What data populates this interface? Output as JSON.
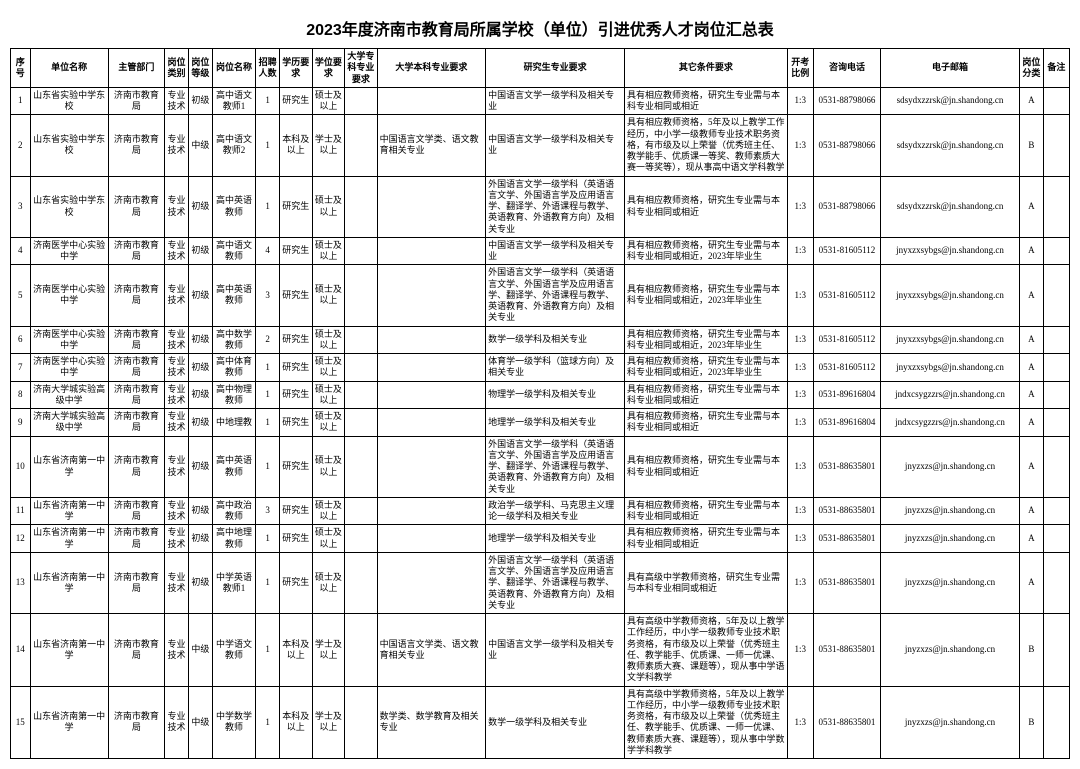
{
  "title": "2023年度济南市教育局所属学校（单位）引进优秀人才岗位汇总表",
  "headers": {
    "seq": "序号",
    "unit": "单位名称",
    "dept": "主管部门",
    "ptype": "岗位类别",
    "pgrade": "岗位等级",
    "pname": "岗位名称",
    "count": "招聘人数",
    "edu": "学历要求",
    "degree": "学位要求",
    "zkreq": "大学专科专业要求",
    "bkreq": "大学本科专业要求",
    "gradreq": "研究生专业要求",
    "other": "其它条件要求",
    "ratio": "开考比例",
    "phone": "咨询电话",
    "email": "电子邮箱",
    "class": "岗位分类",
    "rem": "备注"
  },
  "rows": [
    {
      "seq": "1",
      "unit": "山东省实验中学东校",
      "dept": "济南市教育局",
      "ptype": "专业技术",
      "pgrade": "初级",
      "pname": "高中语文教师1",
      "count": "1",
      "edu": "研究生",
      "degree": "硕士及以上",
      "zkreq": "",
      "bkreq": "",
      "gradreq": "中国语言文学一级学科及相关专业",
      "other": "具有相应教师资格，研究生专业需与本科专业相同或相近",
      "ratio": "1:3",
      "phone": "0531-88798066",
      "email": "sdsydxzzrsk@jn.shandong.cn",
      "class": "A",
      "rem": ""
    },
    {
      "seq": "2",
      "unit": "山东省实验中学东校",
      "dept": "济南市教育局",
      "ptype": "专业技术",
      "pgrade": "中级",
      "pname": "高中语文教师2",
      "count": "1",
      "edu": "本科及以上",
      "degree": "学士及以上",
      "zkreq": "",
      "bkreq": "中国语言文学类、语文教育相关专业",
      "gradreq": "中国语言文学一级学科及相关专业",
      "other": "具有相应教师资格，5年及以上教学工作经历，中小学一级教师专业技术职务资格，有市级及以上荣誉（优秀班主任、教学能手、优质课一等奖、教师素质大赛一等奖等），现从事高中语文学科教学",
      "ratio": "1:3",
      "phone": "0531-88798066",
      "email": "sdsydxzzrsk@jn.shandong.cn",
      "class": "B",
      "rem": ""
    },
    {
      "seq": "3",
      "unit": "山东省实验中学东校",
      "dept": "济南市教育局",
      "ptype": "专业技术",
      "pgrade": "初级",
      "pname": "高中英语教师",
      "count": "1",
      "edu": "研究生",
      "degree": "硕士及以上",
      "zkreq": "",
      "bkreq": "",
      "gradreq": "外国语言文学一级学科（英语语言文学、外国语言学及应用语言学、翻译学、外语课程与教学、英语教育、外语教育方向）及相关专业",
      "other": "具有相应教师资格，研究生专业需与本科专业相同或相近",
      "ratio": "1:3",
      "phone": "0531-88798066",
      "email": "sdsydxzzrsk@jn.shandong.cn",
      "class": "A",
      "rem": ""
    },
    {
      "seq": "4",
      "unit": "济南医学中心实验中学",
      "dept": "济南市教育局",
      "ptype": "专业技术",
      "pgrade": "初级",
      "pname": "高中语文教师",
      "count": "4",
      "edu": "研究生",
      "degree": "硕士及以上",
      "zkreq": "",
      "bkreq": "",
      "gradreq": "中国语言文学一级学科及相关专业",
      "other": "具有相应教师资格，研究生专业需与本科专业相同或相近，2023年毕业生",
      "ratio": "1:3",
      "phone": "0531-81605112",
      "email": "jnyxzxsybgs@jn.shandong.cn",
      "class": "A",
      "rem": ""
    },
    {
      "seq": "5",
      "unit": "济南医学中心实验中学",
      "dept": "济南市教育局",
      "ptype": "专业技术",
      "pgrade": "初级",
      "pname": "高中英语教师",
      "count": "3",
      "edu": "研究生",
      "degree": "硕士及以上",
      "zkreq": "",
      "bkreq": "",
      "gradreq": "外国语言文学一级学科（英语语言文学、外国语言学及应用语言学、翻译学、外语课程与教学、英语教育、外语教育方向）及相关专业",
      "other": "具有相应教师资格，研究生专业需与本科专业相同或相近，2023年毕业生",
      "ratio": "1:3",
      "phone": "0531-81605112",
      "email": "jnyxzxsybgs@jn.shandong.cn",
      "class": "A",
      "rem": ""
    },
    {
      "seq": "6",
      "unit": "济南医学中心实验中学",
      "dept": "济南市教育局",
      "ptype": "专业技术",
      "pgrade": "初级",
      "pname": "高中数学教师",
      "count": "2",
      "edu": "研究生",
      "degree": "硕士及以上",
      "zkreq": "",
      "bkreq": "",
      "gradreq": "数学一级学科及相关专业",
      "other": "具有相应教师资格，研究生专业需与本科专业相同或相近，2023年毕业生",
      "ratio": "1:3",
      "phone": "0531-81605112",
      "email": "jnyxzxsybgs@jn.shandong.cn",
      "class": "A",
      "rem": ""
    },
    {
      "seq": "7",
      "unit": "济南医学中心实验中学",
      "dept": "济南市教育局",
      "ptype": "专业技术",
      "pgrade": "初级",
      "pname": "高中体育教师",
      "count": "1",
      "edu": "研究生",
      "degree": "硕士及以上",
      "zkreq": "",
      "bkreq": "",
      "gradreq": "体育学一级学科（篮球方向）及相关专业",
      "other": "具有相应教师资格，研究生专业需与本科专业相同或相近，2023年毕业生",
      "ratio": "1:3",
      "phone": "0531-81605112",
      "email": "jnyxzxsybgs@jn.shandong.cn",
      "class": "A",
      "rem": ""
    },
    {
      "seq": "8",
      "unit": "济南大学城实验高级中学",
      "dept": "济南市教育局",
      "ptype": "专业技术",
      "pgrade": "初级",
      "pname": "高中物理教师",
      "count": "1",
      "edu": "研究生",
      "degree": "硕士及以上",
      "zkreq": "",
      "bkreq": "",
      "gradreq": "物理学一级学科及相关专业",
      "other": "具有相应教师资格，研究生专业需与本科专业相同或相近",
      "ratio": "1:3",
      "phone": "0531-89616804",
      "email": "jndxcsygzzrs@jn.shandong.cn",
      "class": "A",
      "rem": ""
    },
    {
      "seq": "9",
      "unit": "济南大学城实验高级中学",
      "dept": "济南市教育局",
      "ptype": "专业技术",
      "pgrade": "初级",
      "pname": "中地理教",
      "count": "1",
      "edu": "研究生",
      "degree": "硕士及以上",
      "zkreq": "",
      "bkreq": "",
      "gradreq": "地理学一级学科及相关专业",
      "other": "具有相应教师资格，研究生专业需与本科专业相同或相近",
      "ratio": "1:3",
      "phone": "0531-89616804",
      "email": "jndxcsygzzrs@jn.shandong.cn",
      "class": "A",
      "rem": ""
    },
    {
      "seq": "10",
      "unit": "山东省济南第一中学",
      "dept": "济南市教育局",
      "ptype": "专业技术",
      "pgrade": "初级",
      "pname": "高中英语教师",
      "count": "1",
      "edu": "研究生",
      "degree": "硕士及以上",
      "zkreq": "",
      "bkreq": "",
      "gradreq": "外国语言文学一级学科（英语语言文学、外国语言学及应用语言学、翻译学、外语课程与教学、英语教育、外语教育方向）及相关专业",
      "other": "具有相应教师资格，研究生专业需与本科专业相同或相近",
      "ratio": "1:3",
      "phone": "0531-88635801",
      "email": "jnyzxzs@jn.shandong.cn",
      "class": "A",
      "rem": ""
    },
    {
      "seq": "11",
      "unit": "山东省济南第一中学",
      "dept": "济南市教育局",
      "ptype": "专业技术",
      "pgrade": "初级",
      "pname": "高中政治教师",
      "count": "3",
      "edu": "研究生",
      "degree": "硕士及以上",
      "zkreq": "",
      "bkreq": "",
      "gradreq": "政治学一级学科、马克思主义理论一级学科及相关专业",
      "other": "具有相应教师资格，研究生专业需与本科专业相同或相近",
      "ratio": "1:3",
      "phone": "0531-88635801",
      "email": "jnyzxzs@jn.shandong.cn",
      "class": "A",
      "rem": ""
    },
    {
      "seq": "12",
      "unit": "山东省济南第一中学",
      "dept": "济南市教育局",
      "ptype": "专业技术",
      "pgrade": "初级",
      "pname": "高中地理教师",
      "count": "1",
      "edu": "研究生",
      "degree": "硕士及以上",
      "zkreq": "",
      "bkreq": "",
      "gradreq": "地理学一级学科及相关专业",
      "other": "具有相应教师资格，研究生专业需与本科专业相同或相近",
      "ratio": "1:3",
      "phone": "0531-88635801",
      "email": "jnyzxzs@jn.shandong.cn",
      "class": "A",
      "rem": ""
    },
    {
      "seq": "13",
      "unit": "山东省济南第一中学",
      "dept": "济南市教育局",
      "ptype": "专业技术",
      "pgrade": "初级",
      "pname": "中学英语教师1",
      "count": "1",
      "edu": "研究生",
      "degree": "硕士及以上",
      "zkreq": "",
      "bkreq": "",
      "gradreq": "外国语言文学一级学科（英语语言文学、外国语言学及应用语言学、翻译学、外语课程与教学、英语教育、外语教育方向）及相关专业",
      "other": "具有高级中学教师资格，研究生专业需与本科专业相同或相近",
      "ratio": "1:3",
      "phone": "0531-88635801",
      "email": "jnyzxzs@jn.shandong.cn",
      "class": "A",
      "rem": ""
    },
    {
      "seq": "14",
      "unit": "山东省济南第一中学",
      "dept": "济南市教育局",
      "ptype": "专业技术",
      "pgrade": "中级",
      "pname": "中学语文教师",
      "count": "1",
      "edu": "本科及以上",
      "degree": "学士及以上",
      "zkreq": "",
      "bkreq": "中国语言文学类、语文教育相关专业",
      "gradreq": "中国语言文学一级学科及相关专业",
      "other": "具有高级中学教师资格，5年及以上教学工作经历，中小学一级教师专业技术职务资格，有市级及以上荣誉（优秀班主任、教学能手、优质课、一师一优课、教师素质大赛、课题等），现从事中学语文学科教学",
      "ratio": "1:3",
      "phone": "0531-88635801",
      "email": "jnyzxzs@jn.shandong.cn",
      "class": "B",
      "rem": ""
    },
    {
      "seq": "15",
      "unit": "山东省济南第一中学",
      "dept": "济南市教育局",
      "ptype": "专业技术",
      "pgrade": "中级",
      "pname": "中学数学教师",
      "count": "1",
      "edu": "本科及以上",
      "degree": "学士及以上",
      "zkreq": "",
      "bkreq": "数学类、数学教育及相关专业",
      "gradreq": "数学一级学科及相关专业",
      "other": "具有高级中学教师资格，5年及以上教学工作经历，中小学一级教师专业技术职务资格，有市级及以上荣誉（优秀班主任、教学能手、优质课、一师一优课、教师素质大赛、课题等），现从事中学数学学科教学",
      "ratio": "1:3",
      "phone": "0531-88635801",
      "email": "jnyzxzs@jn.shandong.cn",
      "class": "B",
      "rem": ""
    }
  ]
}
